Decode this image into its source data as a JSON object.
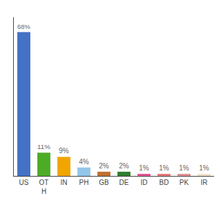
{
  "chart_data": {
    "type": "bar",
    "categories": [
      "US",
      "OT\nH",
      "IN",
      "PH",
      "GB",
      "DE",
      "ID",
      "BD",
      "PK",
      "IR"
    ],
    "values": [
      68,
      11,
      9,
      4,
      2,
      2,
      1,
      1,
      1,
      1
    ],
    "value_labels": [
      "68%",
      "11%",
      "9%",
      "4%",
      "2%",
      "2%",
      "1%",
      "1%",
      "1%",
      "1%"
    ],
    "colors": [
      "#4472c4",
      "#4dac26",
      "#f0a500",
      "#92c6e8",
      "#c07030",
      "#2e7d2e",
      "#e8538f",
      "#e87878",
      "#e09090",
      "#f0e0c8"
    ],
    "ylim": [
      0,
      75
    ],
    "grid": false,
    "data_labels": true,
    "tick_labels": "x"
  }
}
